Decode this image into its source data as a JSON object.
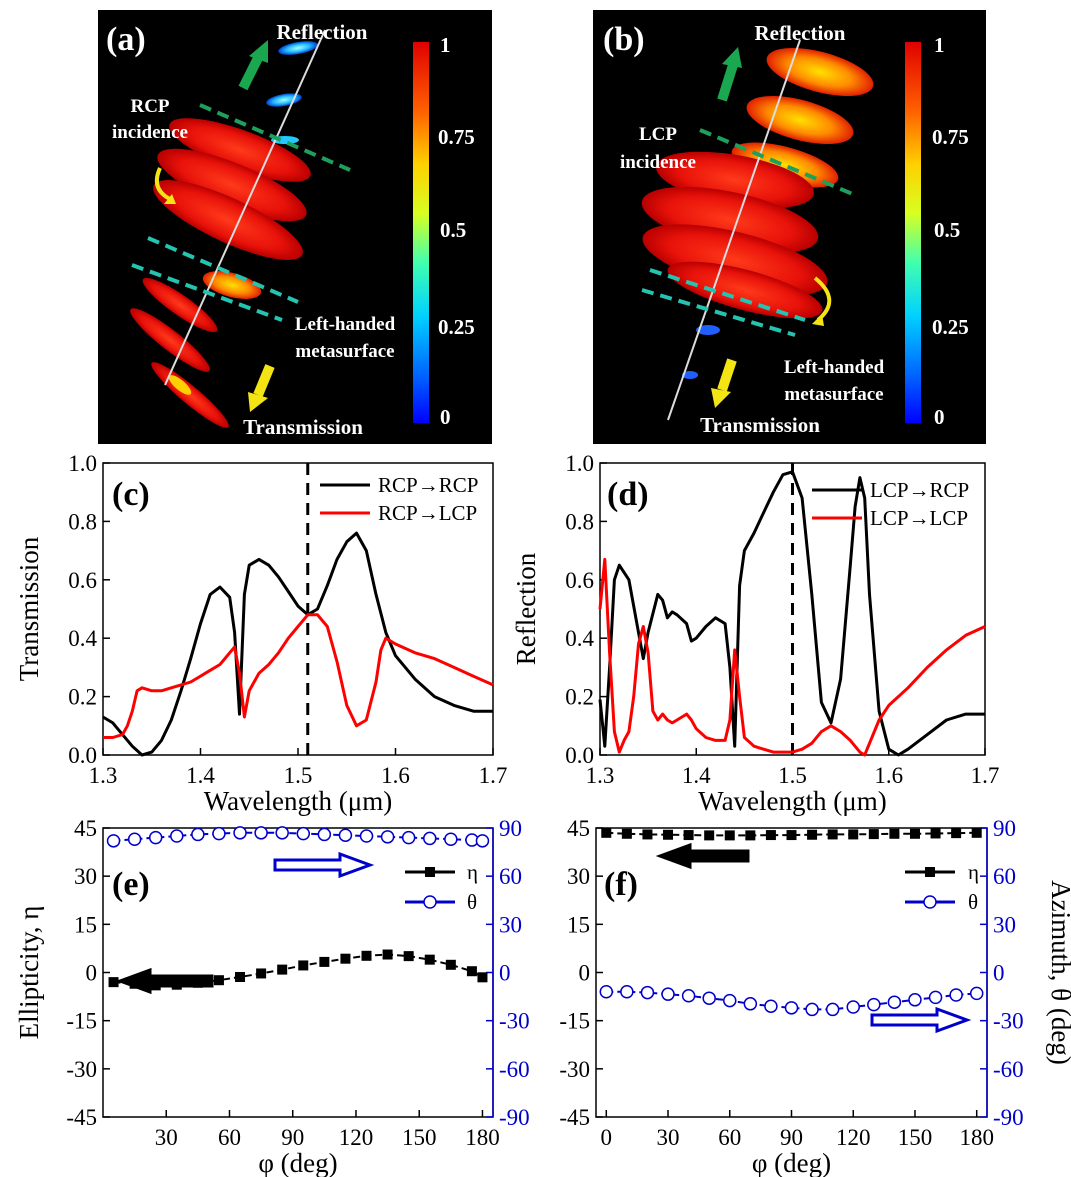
{
  "panels": {
    "a": {
      "letter": "(a)",
      "label_reflection": "Reflection",
      "label_incidence_1": "RCP",
      "label_incidence_2": "incidence",
      "label_meta_1": "Left-handed",
      "label_meta_2": "metasurface",
      "label_transmission": "Transmission",
      "colorbar_ticks": [
        "1",
        "0.75",
        "0.5",
        "0.25",
        "0"
      ]
    },
    "b": {
      "letter": "(b)",
      "label_reflection": "Reflection",
      "label_incidence_1": "LCP",
      "label_incidence_2": "incidence",
      "label_meta_1": "Left-handed",
      "label_meta_2": "metasurface",
      "label_transmission": "Transmission",
      "colorbar_ticks": [
        "1",
        "0.75",
        "0.5",
        "0.25",
        "0"
      ]
    }
  },
  "colors": {
    "black": "#000000",
    "red": "#ff0000",
    "blue": "#0000cc",
    "arrow_green": "#1aa74f",
    "arrow_yellow": "#f5e414",
    "dash_green": "#1f9f5c",
    "dash_cyan": "#25c4b0"
  },
  "chart_data": [
    {
      "id": "c",
      "type": "line",
      "letter": "(c)",
      "xlabel": "Wavelength (μm)",
      "ylabel": "Transmission",
      "xlim": [
        1.3,
        1.7
      ],
      "ylim": [
        0,
        1.0
      ],
      "xticks": [
        "1.3",
        "1.4",
        "1.5",
        "1.6",
        "1.7"
      ],
      "yticks": [
        "0.0",
        "0.2",
        "0.4",
        "0.6",
        "0.8",
        "1.0"
      ],
      "vline": 1.51,
      "legend_position": "top-right",
      "series": [
        {
          "name": "RCP→RCP",
          "color": "#000000",
          "x": [
            1.3,
            1.31,
            1.32,
            1.33,
            1.34,
            1.35,
            1.36,
            1.37,
            1.38,
            1.39,
            1.4,
            1.41,
            1.42,
            1.43,
            1.435,
            1.44,
            1.445,
            1.45,
            1.46,
            1.47,
            1.48,
            1.49,
            1.5,
            1.51,
            1.52,
            1.53,
            1.54,
            1.55,
            1.56,
            1.57,
            1.58,
            1.59,
            1.6,
            1.62,
            1.64,
            1.66,
            1.68,
            1.7
          ],
          "y": [
            0.13,
            0.11,
            0.07,
            0.03,
            0.0,
            0.01,
            0.05,
            0.12,
            0.22,
            0.33,
            0.45,
            0.55,
            0.575,
            0.54,
            0.42,
            0.14,
            0.55,
            0.65,
            0.67,
            0.65,
            0.61,
            0.56,
            0.51,
            0.48,
            0.5,
            0.58,
            0.67,
            0.73,
            0.76,
            0.7,
            0.55,
            0.42,
            0.34,
            0.26,
            0.2,
            0.17,
            0.15,
            0.15
          ]
        },
        {
          "name": "RCP→LCP",
          "color": "#ff0000",
          "x": [
            1.3,
            1.31,
            1.32,
            1.325,
            1.33,
            1.335,
            1.34,
            1.35,
            1.36,
            1.37,
            1.38,
            1.39,
            1.4,
            1.41,
            1.42,
            1.43,
            1.435,
            1.44,
            1.445,
            1.45,
            1.46,
            1.47,
            1.48,
            1.49,
            1.5,
            1.51,
            1.52,
            1.53,
            1.54,
            1.55,
            1.56,
            1.57,
            1.58,
            1.585,
            1.59,
            1.6,
            1.62,
            1.64,
            1.66,
            1.68,
            1.7
          ],
          "y": [
            0.06,
            0.06,
            0.07,
            0.1,
            0.15,
            0.22,
            0.23,
            0.22,
            0.22,
            0.23,
            0.24,
            0.25,
            0.27,
            0.29,
            0.31,
            0.35,
            0.37,
            0.28,
            0.13,
            0.22,
            0.28,
            0.31,
            0.35,
            0.4,
            0.44,
            0.48,
            0.48,
            0.44,
            0.32,
            0.17,
            0.1,
            0.12,
            0.25,
            0.36,
            0.4,
            0.38,
            0.35,
            0.33,
            0.3,
            0.27,
            0.24
          ]
        }
      ]
    },
    {
      "id": "d",
      "type": "line",
      "letter": "(d)",
      "xlabel": "Wavelength (μm)",
      "ylabel": "Reflection",
      "xlim": [
        1.3,
        1.7
      ],
      "ylim": [
        0,
        1.0
      ],
      "xticks": [
        "1.3",
        "1.4",
        "1.5",
        "1.6",
        "1.7"
      ],
      "yticks": [
        "0.0",
        "0.2",
        "0.4",
        "0.6",
        "0.8",
        "1.0"
      ],
      "vline": 1.5,
      "legend_position": "top-right",
      "series": [
        {
          "name": "LCP→RCP",
          "color": "#000000",
          "x": [
            1.3,
            1.305,
            1.31,
            1.315,
            1.32,
            1.33,
            1.34,
            1.345,
            1.35,
            1.36,
            1.365,
            1.37,
            1.375,
            1.38,
            1.39,
            1.395,
            1.4,
            1.41,
            1.42,
            1.43,
            1.435,
            1.44,
            1.445,
            1.45,
            1.46,
            1.47,
            1.48,
            1.49,
            1.5,
            1.51,
            1.52,
            1.53,
            1.54,
            1.55,
            1.56,
            1.565,
            1.57,
            1.575,
            1.58,
            1.59,
            1.6,
            1.61,
            1.62,
            1.64,
            1.66,
            1.68,
            1.7
          ],
          "y": [
            0.19,
            0.03,
            0.3,
            0.6,
            0.65,
            0.6,
            0.42,
            0.33,
            0.42,
            0.55,
            0.53,
            0.47,
            0.49,
            0.48,
            0.45,
            0.39,
            0.4,
            0.44,
            0.47,
            0.45,
            0.3,
            0.03,
            0.58,
            0.7,
            0.76,
            0.83,
            0.9,
            0.96,
            0.97,
            0.88,
            0.55,
            0.18,
            0.11,
            0.26,
            0.65,
            0.85,
            0.95,
            0.88,
            0.55,
            0.15,
            0.02,
            0.0,
            0.02,
            0.07,
            0.12,
            0.14,
            0.14
          ]
        },
        {
          "name": "LCP→LCP",
          "color": "#ff0000",
          "x": [
            1.3,
            1.305,
            1.31,
            1.315,
            1.32,
            1.325,
            1.33,
            1.335,
            1.34,
            1.345,
            1.35,
            1.355,
            1.36,
            1.365,
            1.37,
            1.375,
            1.38,
            1.39,
            1.395,
            1.4,
            1.41,
            1.42,
            1.43,
            1.435,
            1.44,
            1.445,
            1.45,
            1.46,
            1.47,
            1.48,
            1.49,
            1.5,
            1.51,
            1.52,
            1.53,
            1.54,
            1.55,
            1.56,
            1.57,
            1.575,
            1.58,
            1.59,
            1.6,
            1.62,
            1.64,
            1.66,
            1.68,
            1.7
          ],
          "y": [
            0.5,
            0.67,
            0.35,
            0.08,
            0.01,
            0.05,
            0.08,
            0.2,
            0.38,
            0.44,
            0.35,
            0.15,
            0.12,
            0.14,
            0.12,
            0.11,
            0.12,
            0.14,
            0.12,
            0.09,
            0.06,
            0.05,
            0.05,
            0.12,
            0.36,
            0.2,
            0.06,
            0.03,
            0.02,
            0.01,
            0.01,
            0.01,
            0.02,
            0.04,
            0.08,
            0.1,
            0.08,
            0.05,
            0.01,
            0.0,
            0.04,
            0.12,
            0.17,
            0.23,
            0.3,
            0.36,
            0.41,
            0.44
          ]
        }
      ]
    },
    {
      "id": "e",
      "type": "line",
      "letter": "(e)",
      "xlabel": "φ (deg)",
      "ylabel": "Ellipticity, η",
      "y2label": "",
      "xlim": [
        0,
        185
      ],
      "ylim": [
        -45,
        45
      ],
      "y2lim": [
        -90,
        90
      ],
      "xticks": [
        "30",
        "60",
        "90",
        "120",
        "150",
        "180"
      ],
      "yticks": [
        "-45",
        "-30",
        "-15",
        "0",
        "15",
        "30",
        "45"
      ],
      "y2ticks": [
        "-90",
        "-60",
        "-30",
        "0",
        "30",
        "60",
        "90"
      ],
      "legend_position": "top-right",
      "series": [
        {
          "name": "η",
          "axis": "left",
          "marker": "square",
          "color": "#000000",
          "x": [
            5,
            15,
            25,
            35,
            45,
            55,
            65,
            75,
            85,
            95,
            105,
            115,
            125,
            135,
            145,
            155,
            165,
            175,
            180
          ],
          "y": [
            -3,
            -3.5,
            -4,
            -3.8,
            -3.2,
            -2.4,
            -1.4,
            -0.3,
            0.9,
            2.2,
            3.3,
            4.3,
            5.2,
            5.6,
            5.1,
            4.0,
            2.4,
            0.4,
            -1.5
          ]
        },
        {
          "name": "θ",
          "axis": "right",
          "marker": "circle",
          "color": "#0000cc",
          "x": [
            5,
            15,
            25,
            35,
            45,
            55,
            65,
            75,
            85,
            95,
            105,
            115,
            125,
            135,
            145,
            155,
            165,
            175,
            180
          ],
          "y": [
            82,
            83,
            84,
            85,
            86,
            86.5,
            87,
            87,
            87,
            86.5,
            86,
            85.5,
            85,
            84.5,
            84,
            83.5,
            83,
            82.5,
            82
          ]
        }
      ]
    },
    {
      "id": "f",
      "type": "line",
      "letter": "(f)",
      "xlabel": "φ (deg)",
      "ylabel": "",
      "y2label": "Azimuth, θ (deg)",
      "xlim": [
        -5,
        185
      ],
      "ylim": [
        -45,
        45
      ],
      "y2lim": [
        -90,
        90
      ],
      "xticks": [
        "0",
        "30",
        "60",
        "90",
        "120",
        "150",
        "180"
      ],
      "yticks": [
        "-45",
        "-30",
        "-15",
        "0",
        "15",
        "30",
        "45"
      ],
      "y2ticks": [
        "-90",
        "-60",
        "-30",
        "0",
        "30",
        "60",
        "90"
      ],
      "legend_position": "top-right",
      "series": [
        {
          "name": "η",
          "axis": "left",
          "marker": "square",
          "color": "#000000",
          "x": [
            0,
            10,
            20,
            30,
            40,
            50,
            60,
            70,
            80,
            90,
            100,
            110,
            120,
            130,
            140,
            150,
            160,
            170,
            180
          ],
          "y": [
            43.5,
            43.2,
            43.0,
            42.9,
            42.8,
            42.7,
            42.7,
            42.7,
            42.8,
            42.8,
            42.9,
            43.0,
            43.0,
            43.1,
            43.2,
            43.2,
            43.3,
            43.4,
            43.5
          ]
        },
        {
          "name": "θ",
          "axis": "right",
          "marker": "circle",
          "color": "#0000cc",
          "x": [
            0,
            10,
            20,
            30,
            40,
            50,
            60,
            70,
            80,
            90,
            100,
            110,
            120,
            130,
            140,
            150,
            160,
            170,
            180
          ],
          "y": [
            -12,
            -12,
            -12.5,
            -13.5,
            -14.5,
            -16,
            -17.5,
            -19.5,
            -21,
            -22,
            -23,
            -23,
            -21.5,
            -20,
            -18.5,
            -17,
            -15.5,
            -14,
            -13
          ]
        }
      ]
    }
  ]
}
